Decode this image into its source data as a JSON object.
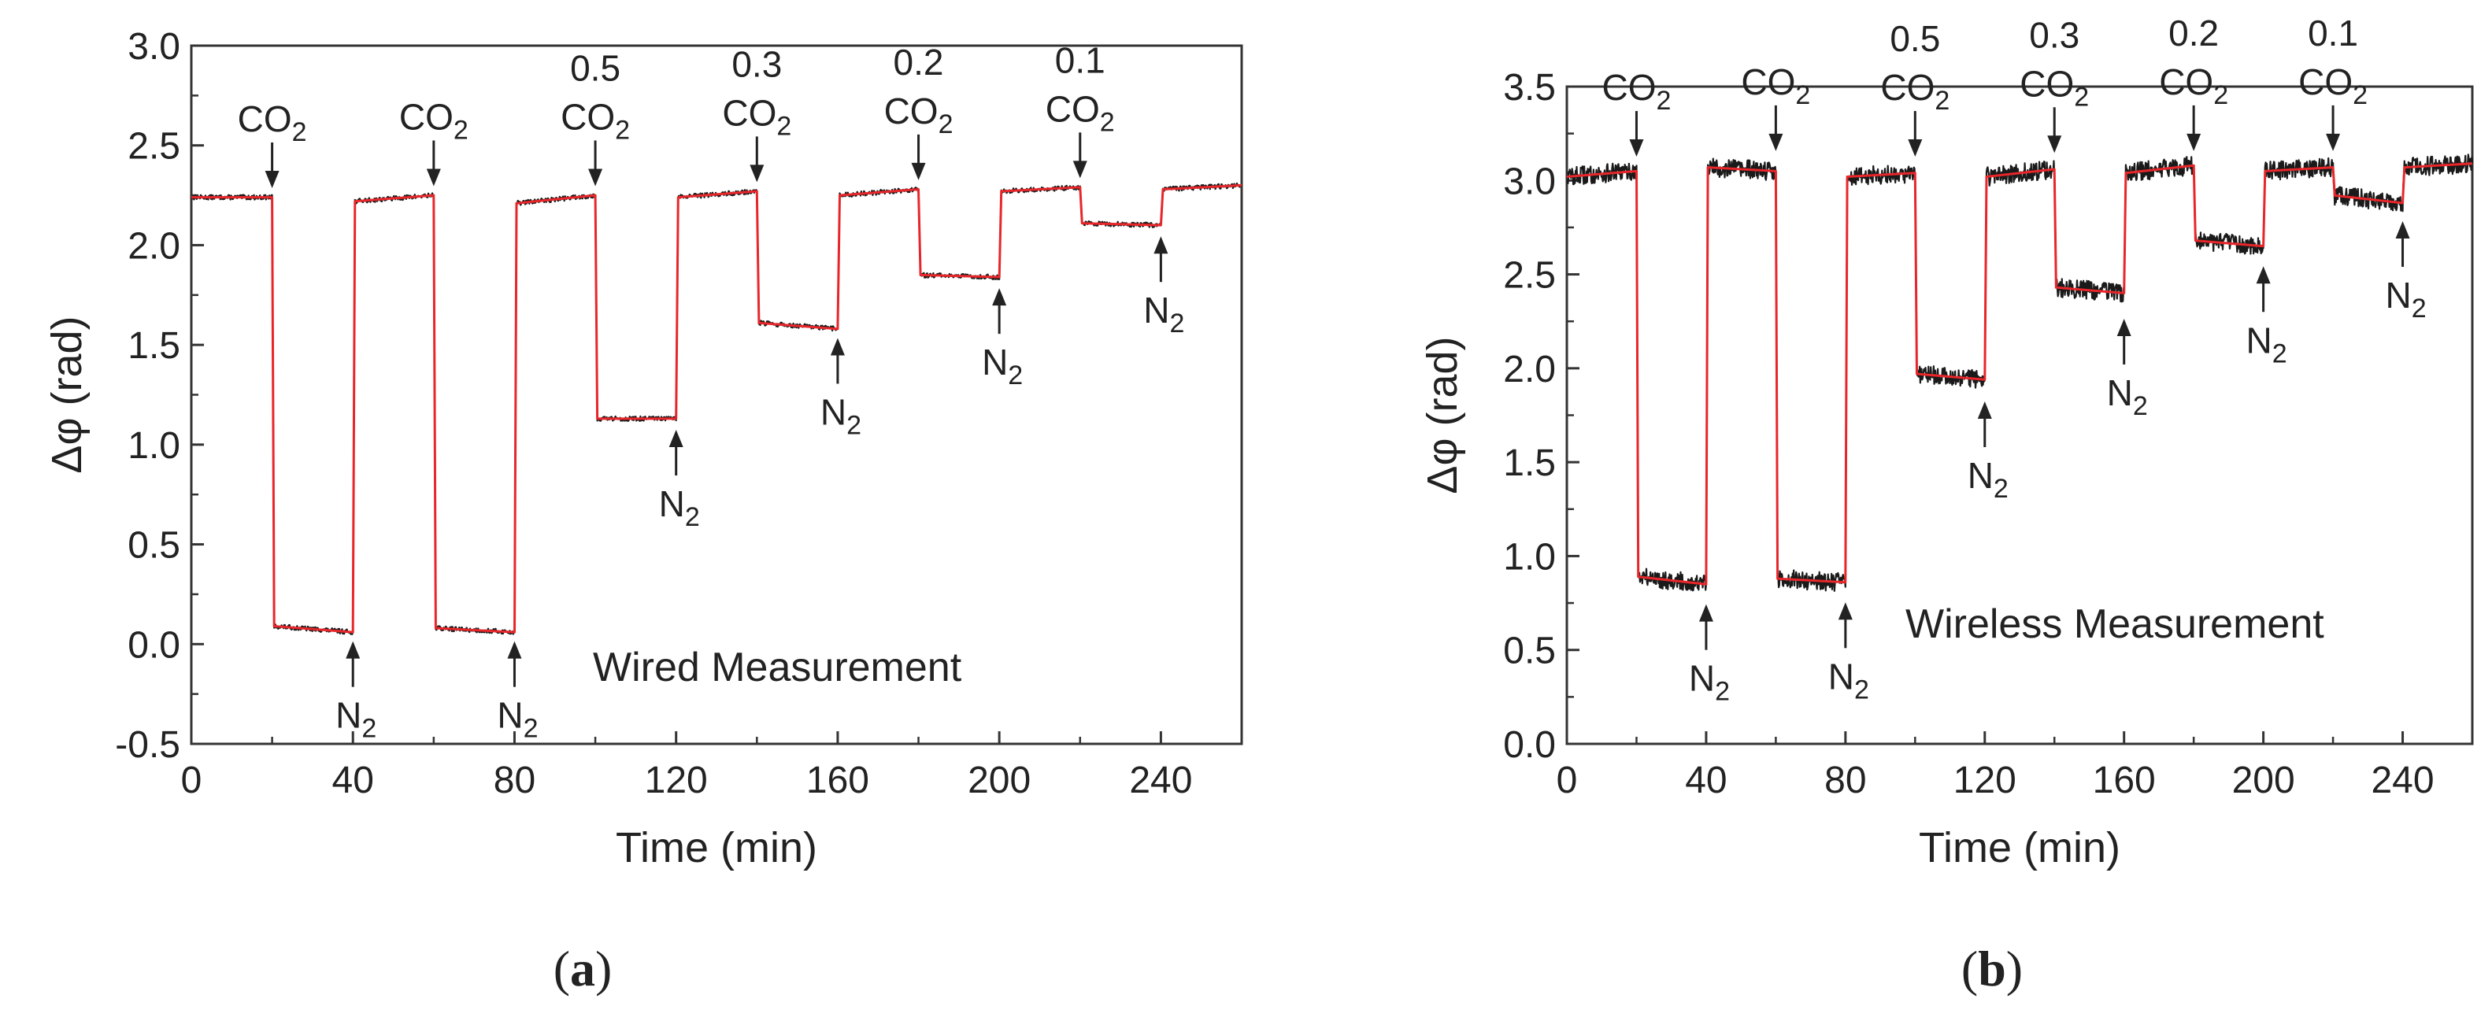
{
  "chart_data": [
    {
      "type": "line",
      "panel_label": "a",
      "annotation_text": "Wired Measurement",
      "xlabel": "Time (min)",
      "ylabel": "Δφ (rad)",
      "xlim": [
        0,
        260
      ],
      "ylim": [
        -0.5,
        3.0
      ],
      "xticks": [
        0,
        40,
        80,
        120,
        160,
        200,
        240
      ],
      "yticks": [
        -0.5,
        0.0,
        0.5,
        1.0,
        1.5,
        2.0,
        2.5,
        3.0
      ],
      "ytick_labels": [
        "-0.5",
        "0.0",
        "0.5",
        "1.0",
        "1.5",
        "2.0",
        "2.5",
        "3.0"
      ],
      "noise": 0.012,
      "colors": {
        "raw": "#1a1a1a",
        "fit": "#e8262a"
      },
      "series": [
        {
          "x": [
            0,
            20,
            20.5,
            40,
            40.5,
            60,
            60.5,
            80,
            80.5,
            100,
            100.5,
            120,
            120.5,
            140,
            140.5,
            160,
            160.5,
            180,
            180.5,
            200,
            200.5,
            220,
            220.5,
            240,
            240.5,
            260
          ],
          "y": [
            2.24,
            2.24,
            0.09,
            0.06,
            2.22,
            2.25,
            0.08,
            0.06,
            2.21,
            2.25,
            1.13,
            1.13,
            2.24,
            2.27,
            1.61,
            1.58,
            2.25,
            2.28,
            1.85,
            1.84,
            2.27,
            2.29,
            2.11,
            2.1,
            2.28,
            2.3
          ]
        }
      ],
      "annotations": [
        {
          "label_top": "",
          "label_gas": "CO",
          "sub": "2",
          "x": 20,
          "y": 2.27,
          "dir": "down"
        },
        {
          "label_top": "",
          "label_gas": "CO",
          "sub": "2",
          "x": 60,
          "y": 2.28,
          "dir": "down"
        },
        {
          "label_top": "0.5",
          "label_gas": "CO",
          "sub": "2",
          "x": 100,
          "y": 2.28,
          "dir": "down"
        },
        {
          "label_top": "0.3",
          "label_gas": "CO",
          "sub": "2",
          "x": 140,
          "y": 2.3,
          "dir": "down"
        },
        {
          "label_top": "0.2",
          "label_gas": "CO",
          "sub": "2",
          "x": 180,
          "y": 2.31,
          "dir": "down"
        },
        {
          "label_top": "0.1",
          "label_gas": "CO",
          "sub": "2",
          "x": 220,
          "y": 2.32,
          "dir": "down"
        },
        {
          "label_top": "",
          "label_gas": "N",
          "sub": "2",
          "x": 40,
          "y": 0.03,
          "dir": "up"
        },
        {
          "label_top": "",
          "label_gas": "N",
          "sub": "2",
          "x": 80,
          "y": 0.03,
          "dir": "up"
        },
        {
          "label_top": "",
          "label_gas": "N",
          "sub": "2",
          "x": 120,
          "y": 1.09,
          "dir": "up"
        },
        {
          "label_top": "",
          "label_gas": "N",
          "sub": "2",
          "x": 160,
          "y": 1.55,
          "dir": "up"
        },
        {
          "label_top": "",
          "label_gas": "N",
          "sub": "2",
          "x": 200,
          "y": 1.8,
          "dir": "up"
        },
        {
          "label_top": "",
          "label_gas": "N",
          "sub": "2",
          "x": 240,
          "y": 2.06,
          "dir": "up"
        }
      ]
    },
    {
      "type": "line",
      "panel_label": "b",
      "annotation_text": "Wireless Measurement",
      "xlabel": "Time (min)",
      "ylabel": "Δφ (rad)",
      "xlim": [
        0,
        260
      ],
      "ylim": [
        0.0,
        3.5
      ],
      "xticks": [
        0,
        40,
        80,
        120,
        160,
        200,
        240
      ],
      "yticks": [
        0.0,
        0.5,
        1.0,
        1.5,
        2.0,
        2.5,
        3.0,
        3.5
      ],
      "ytick_labels": [
        "0.0",
        "0.5",
        "1.0",
        "1.5",
        "2.0",
        "2.5",
        "3.0",
        "3.5"
      ],
      "noise": 0.05,
      "colors": {
        "raw": "#1a1a1a",
        "fit": "#e8262a"
      },
      "series": [
        {
          "x": [
            0,
            20,
            20.5,
            40,
            40.5,
            60,
            60.5,
            80,
            80.5,
            100,
            100.5,
            120,
            120.5,
            140,
            140.5,
            160,
            160.5,
            180,
            180.5,
            200,
            200.5,
            220,
            220.5,
            240,
            240.5,
            260
          ],
          "y": [
            3.02,
            3.05,
            0.89,
            0.85,
            3.07,
            3.05,
            0.88,
            0.86,
            3.02,
            3.04,
            1.97,
            1.94,
            3.02,
            3.06,
            2.43,
            2.4,
            3.04,
            3.08,
            2.68,
            2.65,
            3.05,
            3.07,
            2.92,
            2.88,
            3.07,
            3.09
          ]
        }
      ],
      "annotations": [
        {
          "label_top": "",
          "label_gas": "CO",
          "sub": "2",
          "x": 20,
          "y": 3.11,
          "dir": "down"
        },
        {
          "label_top": "",
          "label_gas": "CO",
          "sub": "2",
          "x": 60,
          "y": 3.14,
          "dir": "down"
        },
        {
          "label_top": "0.5",
          "label_gas": "CO",
          "sub": "2",
          "x": 100,
          "y": 3.11,
          "dir": "down"
        },
        {
          "label_top": "0.3",
          "label_gas": "CO",
          "sub": "2",
          "x": 140,
          "y": 3.13,
          "dir": "down"
        },
        {
          "label_top": "0.2",
          "label_gas": "CO",
          "sub": "2",
          "x": 180,
          "y": 3.14,
          "dir": "down"
        },
        {
          "label_top": "0.1",
          "label_gas": "CO",
          "sub": "2",
          "x": 220,
          "y": 3.14,
          "dir": "down"
        },
        {
          "label_top": "",
          "label_gas": "N",
          "sub": "2",
          "x": 40,
          "y": 0.76,
          "dir": "up"
        },
        {
          "label_top": "",
          "label_gas": "N",
          "sub": "2",
          "x": 80,
          "y": 0.77,
          "dir": "up"
        },
        {
          "label_top": "",
          "label_gas": "N",
          "sub": "2",
          "x": 120,
          "y": 1.84,
          "dir": "up"
        },
        {
          "label_top": "",
          "label_gas": "N",
          "sub": "2",
          "x": 160,
          "y": 2.28,
          "dir": "up"
        },
        {
          "label_top": "",
          "label_gas": "N",
          "sub": "2",
          "x": 200,
          "y": 2.56,
          "dir": "up"
        },
        {
          "label_top": "",
          "label_gas": "N",
          "sub": "2",
          "x": 240,
          "y": 2.8,
          "dir": "up"
        }
      ]
    }
  ]
}
